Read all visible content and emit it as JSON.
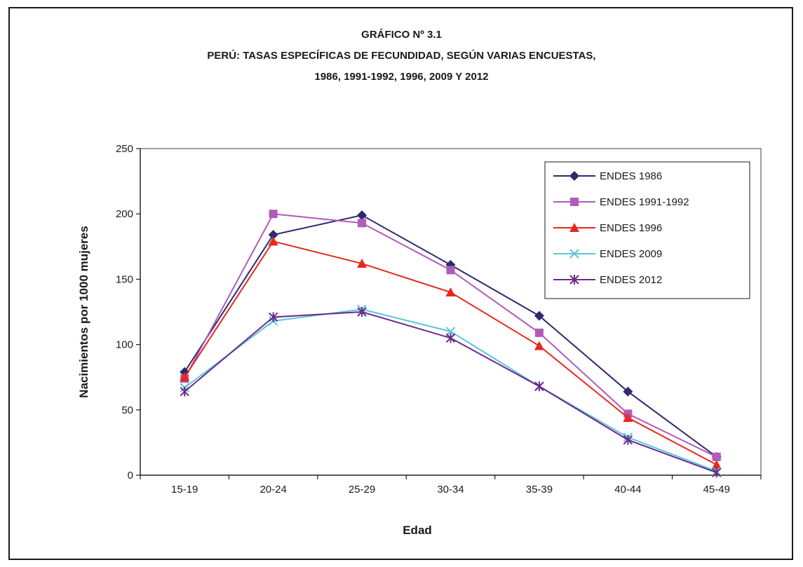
{
  "chart_data": {
    "type": "line",
    "title_lines": [
      "GRÁFICO Nº 3.1",
      "PERÚ: TASAS ESPECÍFICAS DE FECUNDIDAD, SEGÚN  VARIAS ENCUESTAS,",
      "1986, 1991-1992, 1996, 2009 Y 2012"
    ],
    "xlabel": "Edad",
    "ylabel": "Nacimientos por 1000 mujeres",
    "categories": [
      "15-19",
      "20-24",
      "25-29",
      "30-34",
      "35-39",
      "40-44",
      "45-49"
    ],
    "ylim": [
      0,
      250
    ],
    "yticks": [
      "0",
      "50",
      "100",
      "150",
      "200",
      "250"
    ],
    "grid": false,
    "legend_position": "top-right",
    "series": [
      {
        "name": "ENDES 1986",
        "color": "#2e2a6e",
        "marker": "diamond",
        "values": [
          79,
          184,
          199,
          161,
          122,
          64,
          14
        ]
      },
      {
        "name": "ENDES 1991-1992",
        "color": "#b05cb8",
        "marker": "square",
        "values": [
          74,
          200,
          193,
          157,
          109,
          47,
          14
        ]
      },
      {
        "name": "ENDES 1996",
        "color": "#e8281e",
        "marker": "triangle",
        "values": [
          75,
          179,
          162,
          140,
          99,
          44,
          8
        ]
      },
      {
        "name": "ENDES 2009",
        "color": "#5cc6d6",
        "marker": "x",
        "values": [
          67,
          118,
          127,
          110,
          68,
          29,
          3
        ]
      },
      {
        "name": "ENDES 2012",
        "color": "#6a2a8a",
        "marker": "star",
        "values": [
          64,
          121,
          125,
          105,
          68,
          27,
          2
        ]
      }
    ]
  }
}
